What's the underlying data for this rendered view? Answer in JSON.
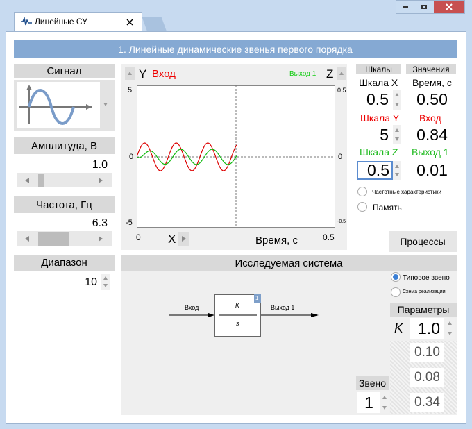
{
  "window": {
    "tab": "Линейные СУ"
  },
  "header": {
    "title": "1. Линейные динамические звенья первого порядка"
  },
  "signal": {
    "title": "Сигнал",
    "amplitude_label": "Амплитуда, В",
    "amplitude": "1.0",
    "frequency_label": "Частота, Гц",
    "frequency": "6.3",
    "range_label": "Диапазон",
    "range": "10"
  },
  "plot": {
    "y_label": "Y",
    "input_label": "Вход",
    "output_label": "Выход 1",
    "z_label": "Z",
    "y_ticks": [
      "5",
      "0",
      "-5"
    ],
    "z_ticks": [
      "0.5",
      "0",
      "-0.5"
    ],
    "x_start": "0",
    "x_label": "X",
    "x_title": "Время, с",
    "x_end": "0.5"
  },
  "scales": {
    "title": "Шкалы",
    "x_label": "Шкала X",
    "x_value": "0.5",
    "y_label": "Шкала Y",
    "y_value": "5",
    "z_label": "Шкала Z",
    "z_value": "0.5"
  },
  "values": {
    "title": "Значения",
    "time_label": "Время, с",
    "time": "0.50",
    "input_label": "Вход",
    "input": "0.84",
    "output_label": "Выход 1",
    "output": "0.01"
  },
  "options": {
    "frequency_response": "Частотные характеристики",
    "memory": "Память",
    "processes": "Процессы"
  },
  "system": {
    "title": "Исследуемая система",
    "typical_link": "Типовое звено",
    "scheme": "Схема реализации",
    "input": "Вход",
    "numerator": "K",
    "denominator": "s",
    "block_number": "1",
    "output": "Выход 1",
    "parameters_title": "Параметры",
    "k_label": "K",
    "k": "1.0",
    "params": [
      "0.10",
      "0.08",
      "0.34"
    ],
    "link_label": "Звено",
    "link": "1"
  }
}
